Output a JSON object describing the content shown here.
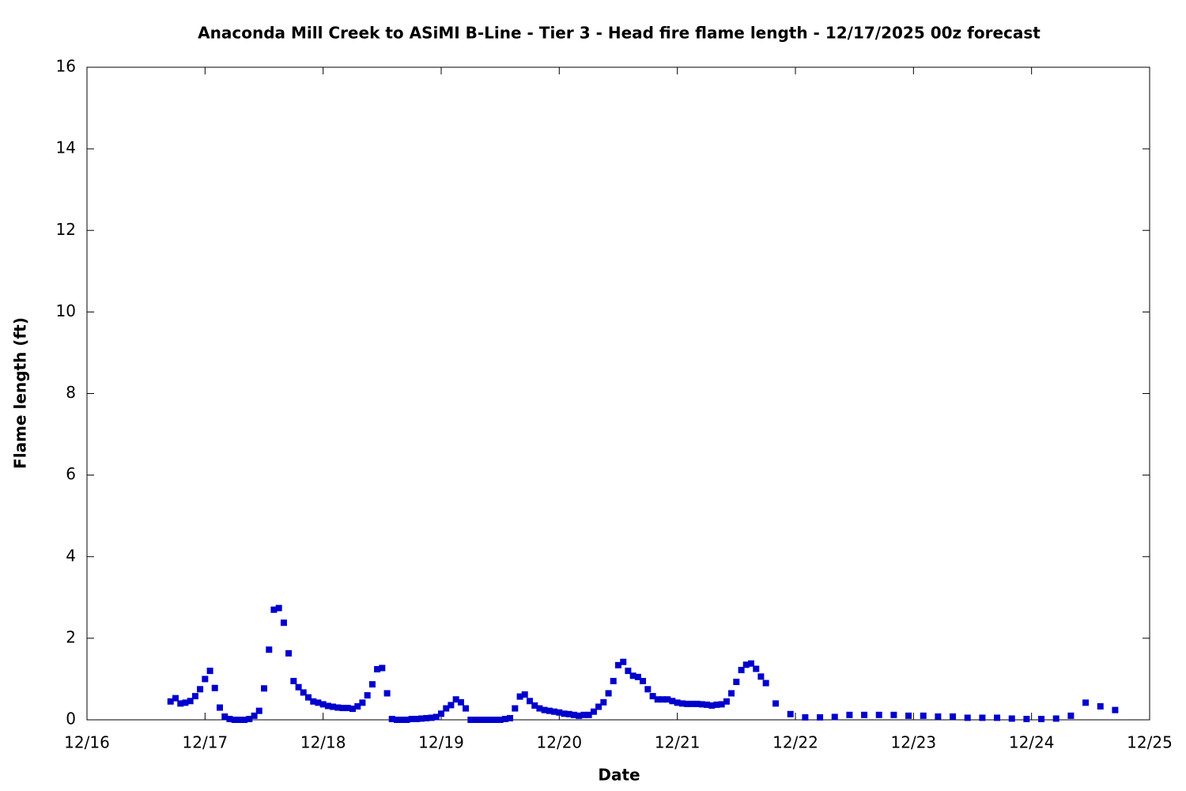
{
  "chart_data": {
    "type": "scatter",
    "title": "Anaconda Mill Creek to ASiMI B-Line - Tier 3 - Head fire flame length - 12/17/2025 00z forecast",
    "x_label": "Date",
    "y_label": "Flame length (ft)",
    "color": "#0000cc",
    "xlim": [
      16,
      25
    ],
    "xticks": [
      {
        "value": 16,
        "label": "12/16"
      },
      {
        "value": 17,
        "label": "12/17"
      },
      {
        "value": 18,
        "label": "12/18"
      },
      {
        "value": 19,
        "label": "12/19"
      },
      {
        "value": 20,
        "label": "12/20"
      },
      {
        "value": 21,
        "label": "12/21"
      },
      {
        "value": 22,
        "label": "12/22"
      },
      {
        "value": 23,
        "label": "12/23"
      },
      {
        "value": 24,
        "label": "12/24"
      },
      {
        "value": 25,
        "label": "12/25"
      }
    ],
    "ylim": [
      0,
      16
    ],
    "yticks": [
      0,
      2,
      4,
      6,
      8,
      10,
      12,
      14,
      16
    ],
    "x": [
      16.708,
      16.75,
      16.792,
      16.833,
      16.875,
      16.917,
      16.958,
      17,
      17.042,
      17.083,
      17.125,
      17.167,
      17.208,
      17.25,
      17.292,
      17.333,
      17.375,
      17.417,
      17.458,
      17.5,
      17.542,
      17.583,
      17.625,
      17.667,
      17.708,
      17.75,
      17.792,
      17.833,
      17.875,
      17.917,
      17.958,
      18,
      18.042,
      18.083,
      18.125,
      18.167,
      18.208,
      18.25,
      18.292,
      18.333,
      18.375,
      18.417,
      18.458,
      18.5,
      18.542,
      18.583,
      18.625,
      18.667,
      18.708,
      18.75,
      18.792,
      18.833,
      18.875,
      18.917,
      18.958,
      19,
      19.042,
      19.083,
      19.125,
      19.167,
      19.208,
      19.25,
      19.292,
      19.333,
      19.375,
      19.417,
      19.458,
      19.5,
      19.542,
      19.583,
      19.625,
      19.667,
      19.708,
      19.75,
      19.792,
      19.833,
      19.875,
      19.917,
      19.958,
      20,
      20.042,
      20.083,
      20.125,
      20.167,
      20.208,
      20.25,
      20.292,
      20.333,
      20.375,
      20.417,
      20.458,
      20.5,
      20.542,
      20.583,
      20.625,
      20.667,
      20.708,
      20.75,
      20.792,
      20.833,
      20.875,
      20.917,
      20.958,
      21,
      21.042,
      21.083,
      21.125,
      21.167,
      21.208,
      21.25,
      21.292,
      21.333,
      21.375,
      21.417,
      21.458,
      21.5,
      21.542,
      21.583,
      21.625,
      21.667,
      21.708,
      21.75,
      21.833,
      21.958,
      22.083,
      22.208,
      22.333,
      22.458,
      22.583,
      22.708,
      22.833,
      22.958,
      23.083,
      23.208,
      23.333,
      23.458,
      23.583,
      23.708,
      23.833,
      23.958,
      24.083,
      24.208,
      24.333,
      24.458,
      24.583,
      24.708
    ],
    "values": [
      0.45,
      0.53,
      0.4,
      0.42,
      0.46,
      0.58,
      0.75,
      1.0,
      1.2,
      0.78,
      0.3,
      0.08,
      0.02,
      0.0,
      0.0,
      0.0,
      0.02,
      0.1,
      0.22,
      0.77,
      1.72,
      2.7,
      2.74,
      2.38,
      1.63,
      0.95,
      0.8,
      0.67,
      0.55,
      0.45,
      0.42,
      0.38,
      0.34,
      0.32,
      0.3,
      0.29,
      0.29,
      0.27,
      0.33,
      0.42,
      0.6,
      0.87,
      1.24,
      1.27,
      0.65,
      0.02,
      0.0,
      0.0,
      0.0,
      0.02,
      0.02,
      0.03,
      0.04,
      0.05,
      0.07,
      0.15,
      0.28,
      0.36,
      0.5,
      0.43,
      0.28,
      0.0,
      0.0,
      0.0,
      0.0,
      0.0,
      0.0,
      0.0,
      0.02,
      0.04,
      0.28,
      0.57,
      0.62,
      0.46,
      0.35,
      0.28,
      0.24,
      0.22,
      0.2,
      0.18,
      0.15,
      0.14,
      0.12,
      0.1,
      0.12,
      0.12,
      0.2,
      0.32,
      0.43,
      0.65,
      0.95,
      1.34,
      1.42,
      1.2,
      1.08,
      1.05,
      0.95,
      0.75,
      0.58,
      0.5,
      0.5,
      0.5,
      0.46,
      0.42,
      0.4,
      0.39,
      0.39,
      0.39,
      0.38,
      0.37,
      0.35,
      0.37,
      0.38,
      0.45,
      0.65,
      0.93,
      1.22,
      1.35,
      1.38,
      1.25,
      1.06,
      0.9,
      0.4,
      0.14,
      0.06,
      0.06,
      0.07,
      0.12,
      0.12,
      0.12,
      0.12,
      0.1,
      0.1,
      0.08,
      0.08,
      0.05,
      0.05,
      0.05,
      0.03,
      0.02,
      0.02,
      0.03,
      0.1,
      0.42,
      0.33,
      0.24
    ]
  }
}
